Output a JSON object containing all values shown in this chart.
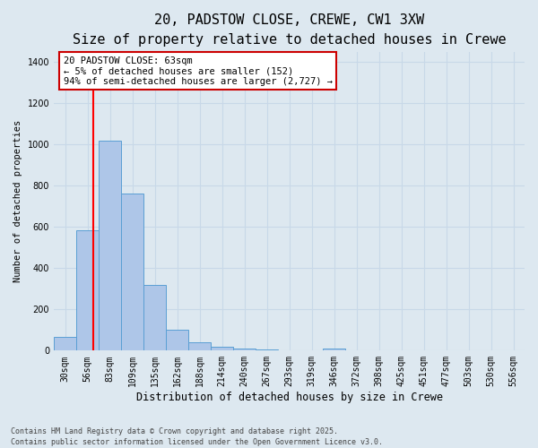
{
  "title_line1": "20, PADSTOW CLOSE, CREWE, CW1 3XW",
  "title_line2": "Size of property relative to detached houses in Crewe",
  "xlabel": "Distribution of detached houses by size in Crewe",
  "ylabel": "Number of detached properties",
  "categories": [
    "30sqm",
    "56sqm",
    "83sqm",
    "109sqm",
    "135sqm",
    "162sqm",
    "188sqm",
    "214sqm",
    "240sqm",
    "267sqm",
    "293sqm",
    "319sqm",
    "346sqm",
    "372sqm",
    "398sqm",
    "425sqm",
    "451sqm",
    "477sqm",
    "503sqm",
    "530sqm",
    "556sqm"
  ],
  "values": [
    65,
    585,
    1020,
    760,
    320,
    100,
    40,
    20,
    10,
    5,
    2,
    1,
    8,
    0,
    0,
    0,
    0,
    0,
    0,
    0,
    0
  ],
  "bar_color": "#aec6e8",
  "bar_edge_color": "#5a9fd4",
  "grid_color": "#c8d8e8",
  "bg_color": "#dde8f0",
  "red_line_x": 1.27,
  "annotation_text": "20 PADSTOW CLOSE: 63sqm\n← 5% of detached houses are smaller (152)\n94% of semi-detached houses are larger (2,727) →",
  "annotation_box_color": "#ffffff",
  "annotation_box_edge": "#cc0000",
  "footer_line1": "Contains HM Land Registry data © Crown copyright and database right 2025.",
  "footer_line2": "Contains public sector information licensed under the Open Government Licence v3.0.",
  "ylim": [
    0,
    1450
  ],
  "title_fontsize": 11,
  "subtitle_fontsize": 9,
  "ylabel_fontsize": 7.5,
  "xlabel_fontsize": 8.5,
  "tick_fontsize": 7,
  "annot_fontsize": 7.5,
  "footer_fontsize": 6
}
